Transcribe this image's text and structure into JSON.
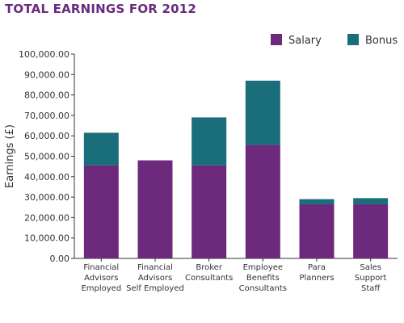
{
  "chart_data": {
    "type": "bar",
    "stacked": true,
    "title": "TOTAL EARNINGS FOR 2012",
    "ylabel": "Earnings (£)",
    "xlabel": "",
    "ylim": [
      0,
      100000
    ],
    "yticks": [
      0,
      10000,
      20000,
      30000,
      40000,
      50000,
      60000,
      70000,
      80000,
      90000,
      100000
    ],
    "ytick_labels": [
      "0.00",
      "10,000.00",
      "20,000.00",
      "30,000.00",
      "40,000.00",
      "50,000.00",
      "60,000.00",
      "70,000.00",
      "80,000.00",
      "90,000.00",
      "100,000.00"
    ],
    "categories": [
      [
        "Financial",
        "Advisors",
        "Employed"
      ],
      [
        "Financial",
        "Advisors",
        "Self Employed"
      ],
      [
        "Broker",
        "Consultants"
      ],
      [
        "Employee",
        "Benefits",
        "Consultants"
      ],
      [
        "Para",
        "Planners"
      ],
      [
        "Sales",
        "Support",
        "Staff"
      ]
    ],
    "series": [
      {
        "name": "Salary",
        "values": [
          45500,
          48000,
          45500,
          55500,
          26500,
          26500
        ]
      },
      {
        "name": "Bonus",
        "values": [
          16000,
          0,
          23500,
          31500,
          2500,
          3000
        ]
      }
    ],
    "legend_position": "top-right",
    "grid": false,
    "colors": {
      "Salary": "#6d2a7d",
      "Bonus": "#1a6d7a",
      "title": "#6a2a7e",
      "axis": "#333333"
    }
  }
}
